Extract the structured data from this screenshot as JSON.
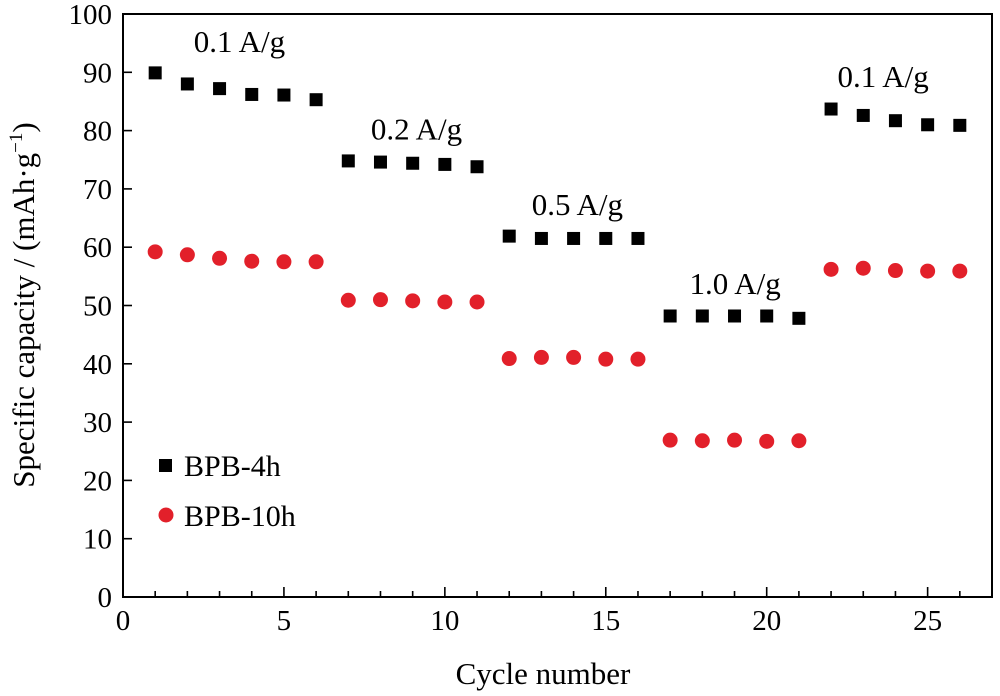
{
  "chart_data": {
    "type": "scatter",
    "xlabel": "Cycle number",
    "ylabel_main": "Specific capacity / (mAh·g",
    "ylabel_sup": "−1",
    "ylabel_close": ")",
    "xlim": [
      0,
      27
    ],
    "ylim": [
      0,
      100
    ],
    "xticks": [
      0,
      5,
      10,
      15,
      20,
      25
    ],
    "yticks": [
      0,
      10,
      20,
      30,
      40,
      50,
      60,
      70,
      80,
      90,
      100
    ],
    "grid": false,
    "legend_position": "bottom-left",
    "colors": {
      "BPB-4h": "#000000",
      "BPB-10h": "#e2202a"
    },
    "series": [
      {
        "name": "BPB-4h",
        "marker": "square",
        "x": [
          1,
          2,
          3,
          4,
          5,
          6,
          7,
          8,
          9,
          10,
          11,
          12,
          13,
          14,
          15,
          16,
          17,
          18,
          19,
          20,
          21,
          22,
          23,
          24,
          25,
          26
        ],
        "y": [
          89.9,
          88.0,
          87.2,
          86.2,
          86.1,
          85.3,
          74.8,
          74.6,
          74.4,
          74.2,
          73.8,
          61.9,
          61.5,
          61.5,
          61.5,
          61.5,
          48.2,
          48.2,
          48.2,
          48.2,
          47.8,
          83.7,
          82.6,
          81.7,
          81.0,
          80.9
        ]
      },
      {
        "name": "BPB-10h",
        "marker": "circle",
        "x": [
          1,
          2,
          3,
          4,
          5,
          6,
          7,
          8,
          9,
          10,
          11,
          12,
          13,
          14,
          15,
          16,
          17,
          18,
          19,
          20,
          21,
          22,
          23,
          24,
          25,
          26
        ],
        "y": [
          59.2,
          58.7,
          58.1,
          57.6,
          57.5,
          57.5,
          50.9,
          51.0,
          50.8,
          50.6,
          50.6,
          40.9,
          41.1,
          41.1,
          40.8,
          40.8,
          26.9,
          26.8,
          26.9,
          26.7,
          26.8,
          56.2,
          56.4,
          56.0,
          55.9,
          55.9
        ]
      }
    ],
    "annotations": [
      {
        "text": "0.1 A/g",
        "x": 2.2,
        "y": 93.5
      },
      {
        "text": "0.2 A/g",
        "x": 7.7,
        "y": 78.5
      },
      {
        "text": "0.5 A/g",
        "x": 12.7,
        "y": 65.5
      },
      {
        "text": "1.0 A/g",
        "x": 17.6,
        "y": 52.0
      },
      {
        "text": "0.1 A/g",
        "x": 22.2,
        "y": 87.5
      }
    ]
  }
}
